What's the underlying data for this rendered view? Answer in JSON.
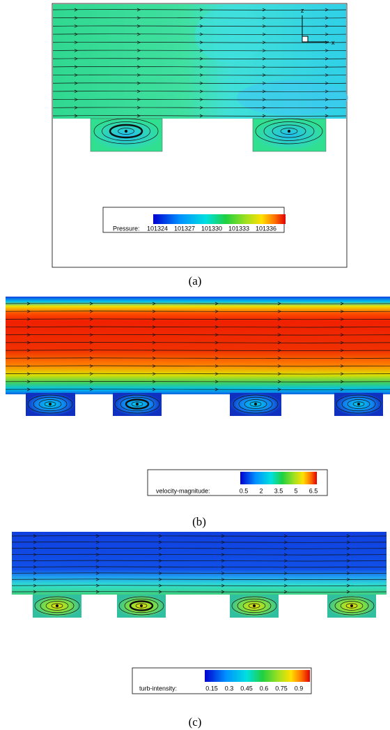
{
  "panels": [
    {
      "label": "(a)",
      "axis_labels": {
        "z": "z",
        "x": "x"
      },
      "legend": {
        "title": "Pressure:",
        "ticks": [
          "101324",
          "101327",
          "101330",
          "101333",
          "101336"
        ]
      }
    },
    {
      "label": "(b)",
      "legend": {
        "title": "velocity-magnitude:",
        "ticks": [
          "0.5",
          "2",
          "3.5",
          "5",
          "6.5"
        ]
      }
    },
    {
      "label": "(c)",
      "legend": {
        "title": "turb-intensity:",
        "ticks": [
          "0.15",
          "0.3",
          "0.45",
          "0.6",
          "0.75",
          "0.9"
        ]
      }
    }
  ]
}
